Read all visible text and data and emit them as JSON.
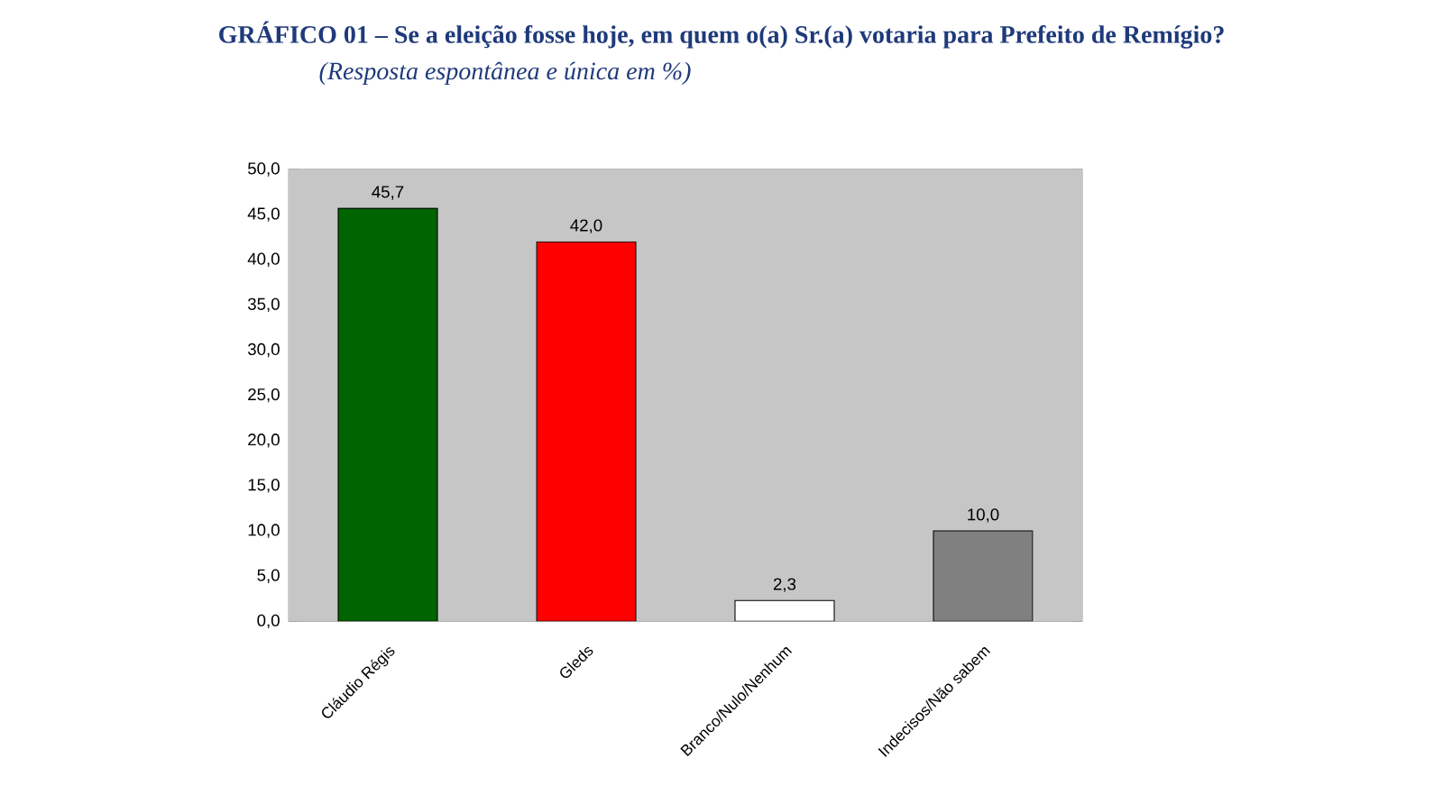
{
  "chart_data": {
    "type": "bar",
    "title": "GRÁFICO 01 – Se a eleição fosse hoje, em quem o(a) Sr.(a) votaria para Prefeito de Remígio?",
    "subtitle": "(Resposta espontânea e única em %)",
    "categories": [
      "Cláudio Régis",
      "Gleds",
      "Branco/Nulo/Nenhum",
      "Indecisos/Não sabem"
    ],
    "values": [
      45.7,
      42.0,
      2.3,
      10.0
    ],
    "colors": [
      "#006400",
      "#ff0000",
      "#ffffff",
      "#808080"
    ],
    "value_labels": [
      "45,7",
      "42,0",
      "2,3",
      "10,0"
    ],
    "ylim": [
      0,
      50
    ],
    "yticks": [
      {
        "value": 0,
        "label": "0,0"
      },
      {
        "value": 5,
        "label": "5,0"
      },
      {
        "value": 10,
        "label": "10,0"
      },
      {
        "value": 15,
        "label": "15,0"
      },
      {
        "value": 20,
        "label": "20,0"
      },
      {
        "value": 25,
        "label": "25,0"
      },
      {
        "value": 30,
        "label": "30,0"
      },
      {
        "value": 35,
        "label": "35,0"
      },
      {
        "value": 40,
        "label": "40,0"
      },
      {
        "value": 45,
        "label": "45,0"
      },
      {
        "value": 50,
        "label": "50,0"
      }
    ],
    "grid": "y"
  }
}
